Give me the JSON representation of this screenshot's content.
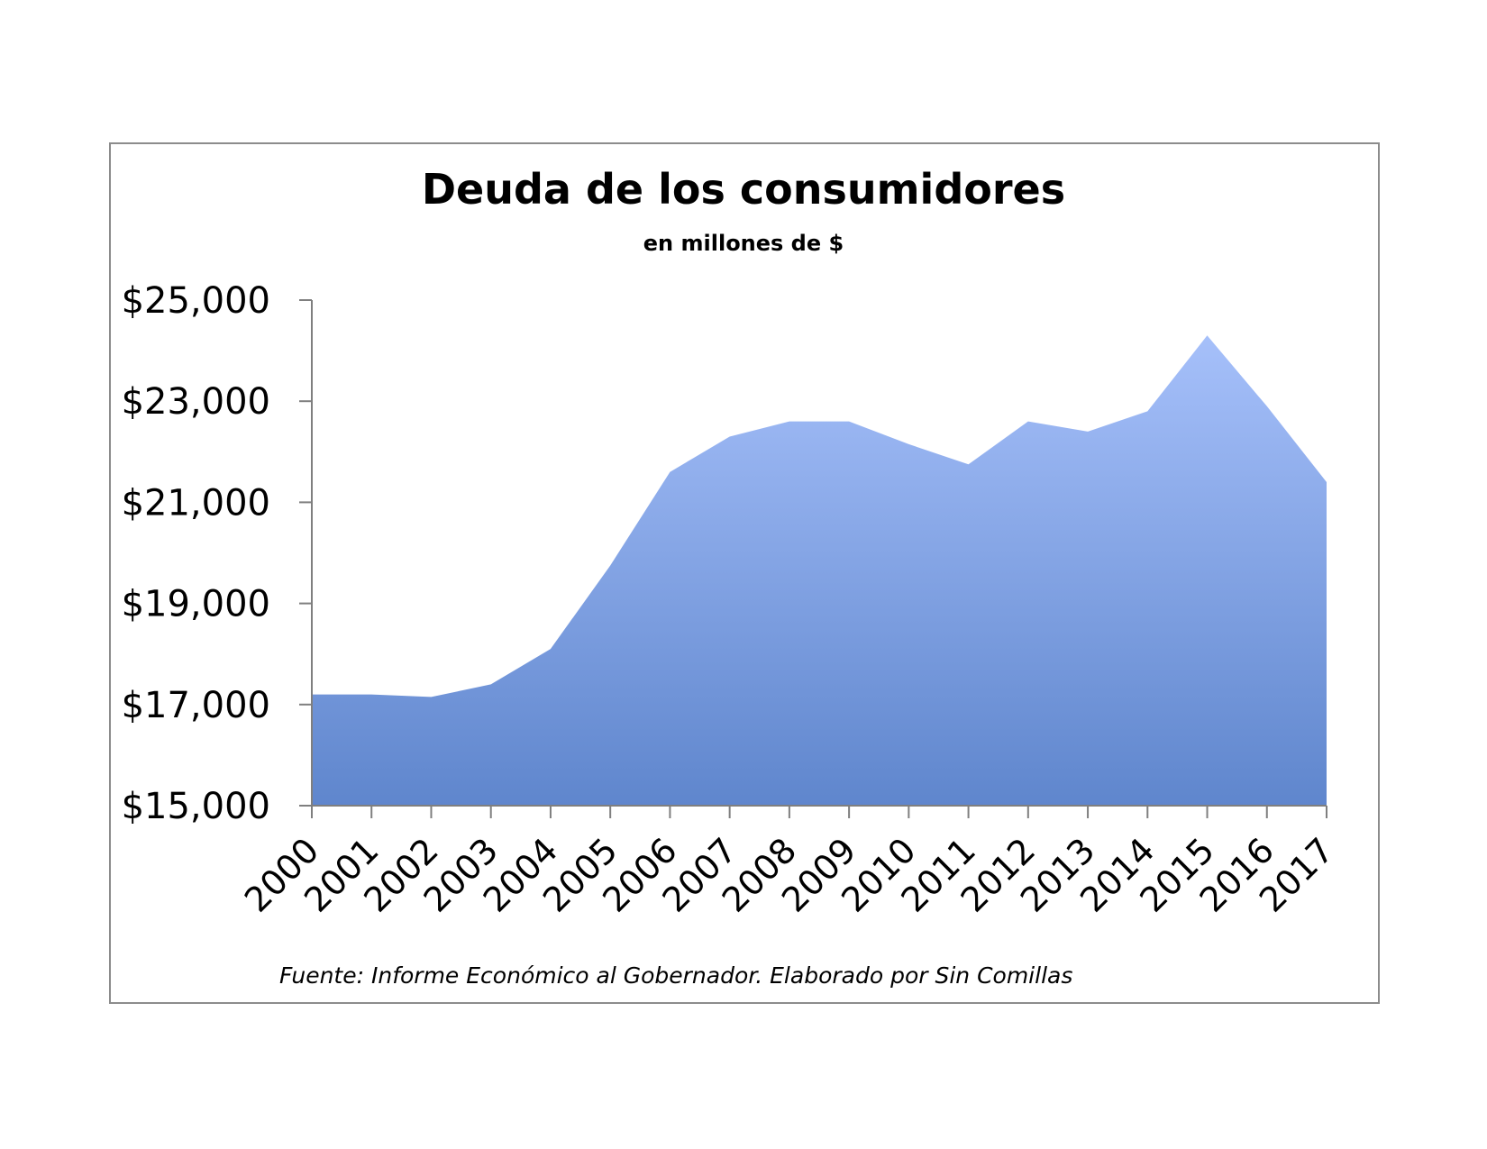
{
  "chart_data": {
    "type": "area",
    "title": "Deuda de los consumidores",
    "subtitle": "en millones de $",
    "source": "Fuente: Informe Económico al Gobernador.  Elaborado por Sin Comillas",
    "x": [
      "2000",
      "2001",
      "2002",
      "2003",
      "2004",
      "2005",
      "2006",
      "2007",
      "2008",
      "2009",
      "2010",
      "2011",
      "2012",
      "2013",
      "2014",
      "2015",
      "2016",
      "2017"
    ],
    "values": [
      17200,
      17200,
      17150,
      17400,
      18100,
      19750,
      21600,
      22300,
      22600,
      22600,
      22150,
      21750,
      22600,
      22400,
      22800,
      24300,
      22900,
      21400
    ],
    "ylim": [
      15000,
      25000
    ],
    "yticks": [
      15000,
      17000,
      19000,
      21000,
      23000,
      25000
    ],
    "ytick_labels": [
      "$15,000",
      "$17,000",
      "$19,000",
      "$21,000",
      "$23,000",
      "$25,000"
    ],
    "grid": false,
    "legend": "none",
    "colors": {
      "fill_top": "#a6c0fa",
      "fill_bottom": "#5f86cd",
      "axis": "#7f7f7f"
    }
  }
}
